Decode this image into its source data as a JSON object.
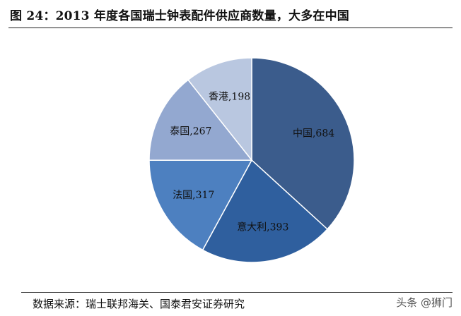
{
  "title": "图 24：2013 年度各国瑞士钟表配件供应商数量，大多在中国",
  "source": "数据来源：瑞士联邦海关、国泰君安证券研究",
  "watermark": "头条 @狮门",
  "chart_data": {
    "type": "pie",
    "title": "",
    "slices": [
      {
        "label": "中国",
        "value": 684,
        "color": "#3b5c8c"
      },
      {
        "label": "意大利",
        "value": 393,
        "color": "#2f5f9e"
      },
      {
        "label": "法国",
        "value": 317,
        "color": "#4d80c0"
      },
      {
        "label": "泰国",
        "value": 267,
        "color": "#93a8d0"
      },
      {
        "label": "香港",
        "value": 198,
        "color": "#b9c7e0"
      }
    ]
  }
}
